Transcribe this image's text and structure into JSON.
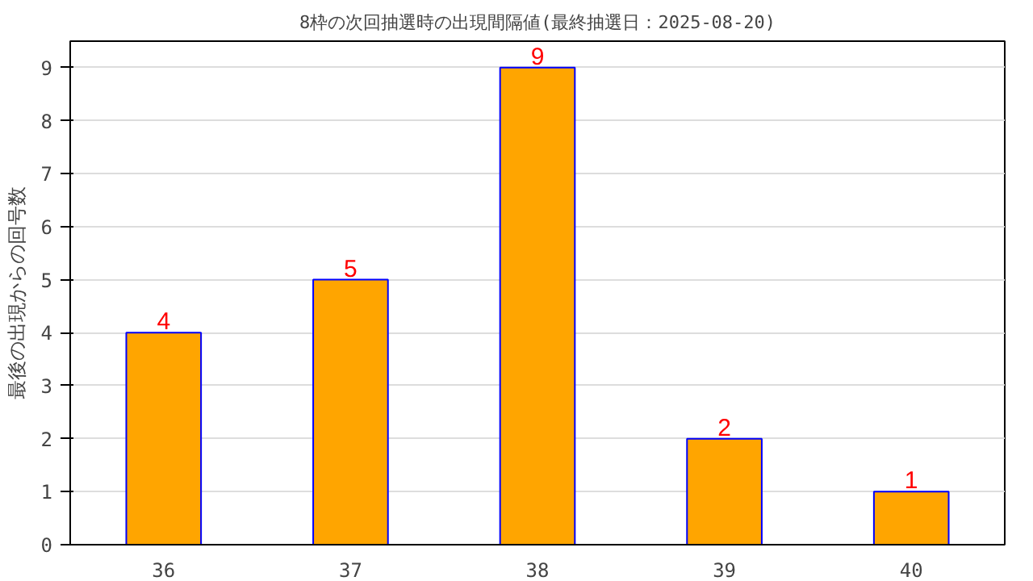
{
  "chart_data": {
    "type": "bar",
    "title": "8枠の次回抽選時の出現間隔値(最終抽選日：2025-08-20)",
    "ylabel": "最後の出現からの回号数",
    "categories": [
      "36",
      "37",
      "38",
      "39",
      "40"
    ],
    "values": [
      4,
      5,
      9,
      2,
      1
    ],
    "color": "#ffa500",
    "ylim": [
      0,
      9.5
    ],
    "yticks": [
      0,
      1,
      2,
      3,
      4,
      5,
      6,
      7,
      8,
      9
    ],
    "grid": "y",
    "data_labels": true
  }
}
